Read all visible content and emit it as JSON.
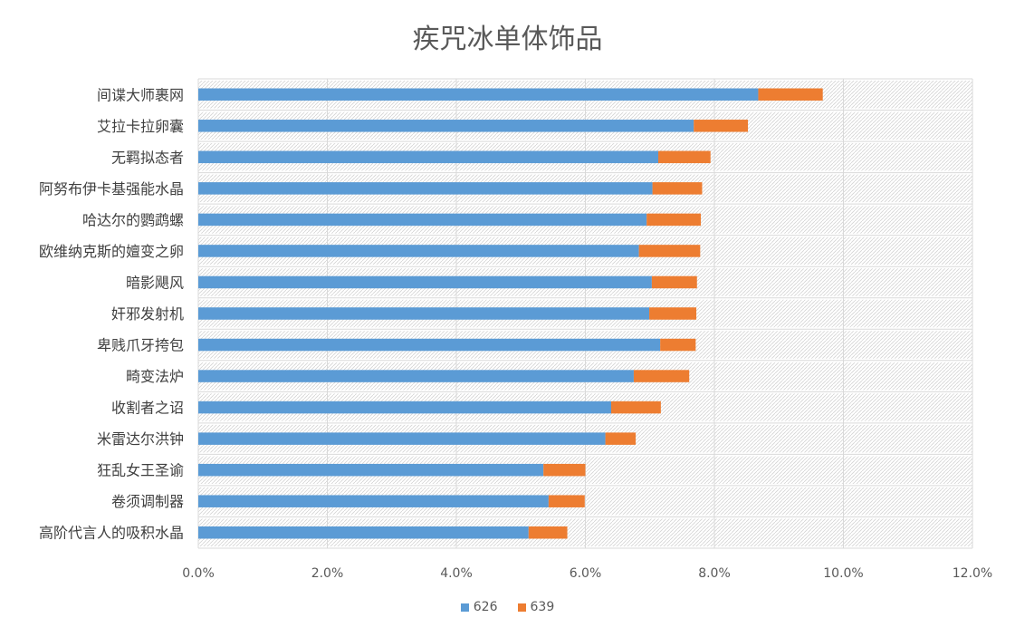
{
  "chart_data": {
    "type": "bar",
    "orientation": "horizontal",
    "stacked": true,
    "title": "疾咒冰单体饰品",
    "xlabel": "",
    "ylabel": "",
    "xlim": [
      0,
      0.12
    ],
    "x_ticks": [
      "0.0%",
      "2.0%",
      "4.0%",
      "6.0%",
      "8.0%",
      "10.0%",
      "12.0%"
    ],
    "grid": true,
    "legend_position": "bottom",
    "categories": [
      "间谍大师裹网",
      "艾拉卡拉卵囊",
      "无羁拟态者",
      "阿努布伊卡基强能水晶",
      "哈达尔的鹦鹉螺",
      "欧维纳克斯的嬗变之卵",
      "暗影飓风",
      "奸邪发射机",
      "卑贱爪牙挎包",
      "畸变法炉",
      "收割者之诏",
      "米雷达尔洪钟",
      "狂乱女王圣谕",
      "卷须调制器",
      "高阶代言人的吸积水晶"
    ],
    "series": [
      {
        "name": "626",
        "color": "#5B9BD5",
        "values": [
          0.0868,
          0.0768,
          0.0713,
          0.0704,
          0.0695,
          0.0683,
          0.0703,
          0.0699,
          0.0716,
          0.0675,
          0.064,
          0.0631,
          0.0535,
          0.0543,
          0.0512
        ]
      },
      {
        "name": "639",
        "color": "#ED7D31",
        "values": [
          0.01,
          0.0084,
          0.0081,
          0.0077,
          0.0084,
          0.0095,
          0.007,
          0.0073,
          0.0055,
          0.0086,
          0.0077,
          0.0047,
          0.0065,
          0.0056,
          0.006
        ]
      }
    ]
  }
}
